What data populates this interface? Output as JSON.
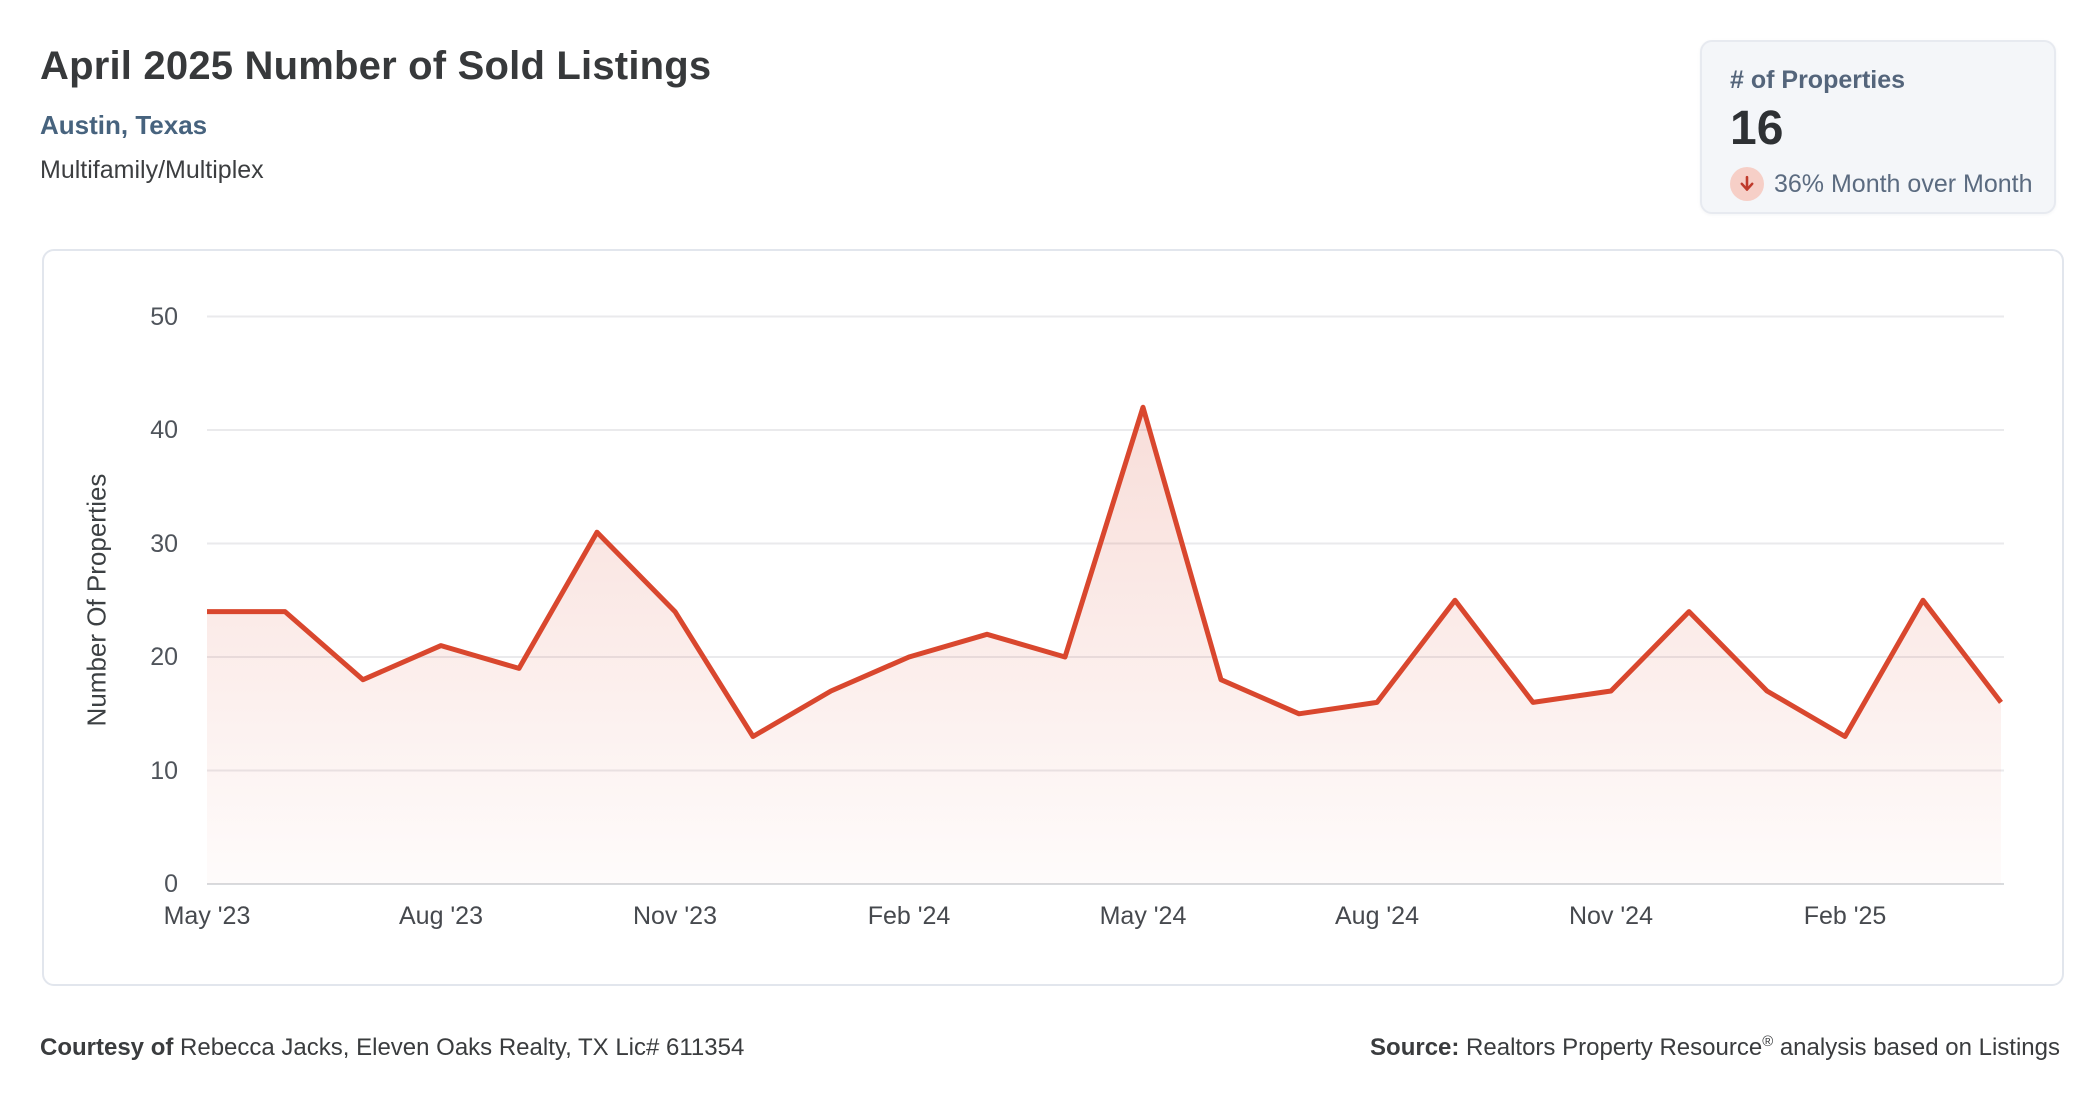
{
  "header": {
    "title": "April 2025 Number of Sold Listings",
    "location": "Austin, Texas",
    "property_type": "Multifamily/Multiplex"
  },
  "stats": {
    "label": "# of Properties",
    "value": "16",
    "trend_direction": "down",
    "trend_text": "36% Month over Month",
    "trend_icon": "down-arrow-icon",
    "trend_icon_color": "#bf3a2b",
    "trend_icon_bg": "#f6cfc7"
  },
  "chart_data": {
    "type": "area",
    "title": "April 2025 Number of Sold Listings",
    "x": [
      "May '23",
      "Jun '23",
      "Jul '23",
      "Aug '23",
      "Sep '23",
      "Oct '23",
      "Nov '23",
      "Dec '23",
      "Jan '24",
      "Feb '24",
      "Mar '24",
      "Apr '24",
      "May '24",
      "Jun '24",
      "Jul '24",
      "Aug '24",
      "Sep '24",
      "Oct '24",
      "Nov '24",
      "Dec '24",
      "Jan '25",
      "Feb '25",
      "Mar '25",
      "Apr '25"
    ],
    "values": [
      24,
      24,
      18,
      21,
      19,
      31,
      24,
      13,
      17,
      20,
      22,
      20,
      42,
      18,
      15,
      16,
      25,
      16,
      17,
      24,
      17,
      13,
      25,
      16
    ],
    "x_tick_labels": [
      "May '23",
      "Aug '23",
      "Nov '23",
      "Feb '24",
      "May '24",
      "Aug '24",
      "Nov '24",
      "Feb '25"
    ],
    "x_tick_indices": [
      0,
      3,
      6,
      9,
      12,
      15,
      18,
      21
    ],
    "xlabel": "",
    "ylabel": "Number Of Properties",
    "y_ticks": [
      0,
      10,
      20,
      30,
      40,
      50
    ],
    "ylim": [
      0,
      50
    ],
    "grid": true,
    "legend": "none",
    "line_color": "#d9472e",
    "fill_color_top": "rgba(217,71,46,0.21)",
    "fill_color_bottom": "rgba(217,71,46,0.02)"
  },
  "footer": {
    "courtesy_label": "Courtesy of",
    "courtesy_text": " Rebecca Jacks, Eleven Oaks Realty, TX Lic# 611354",
    "source_label": "Source:",
    "source_name": " Realtors Property Resource",
    "source_registered": "®",
    "source_text": " analysis based on Listings"
  }
}
